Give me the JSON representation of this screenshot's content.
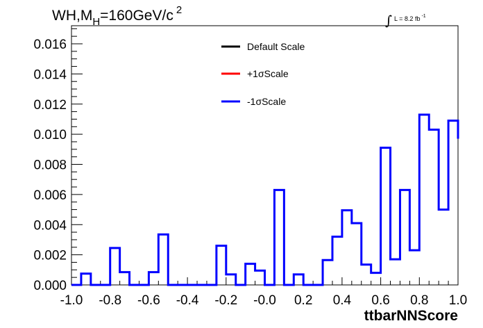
{
  "chart_data": {
    "type": "line",
    "title_parts": {
      "main": "WH,M",
      "sub": "H",
      "rest": "=160GeV/c",
      "sup": "2"
    },
    "lumi": {
      "integral": "∫",
      "text": "L = 8.2 fb",
      "sup": "-1"
    },
    "xlabel": "ttbarNNScore",
    "xlim": [
      -1.0,
      1.0
    ],
    "ylim": [
      0.0,
      0.0172
    ],
    "x_ticks": [
      "-1.0",
      "-0.8",
      "-0.6",
      "-0.4",
      "-0.2",
      "-0.0",
      "0.2",
      "0.4",
      "0.6",
      "0.8",
      "1.0"
    ],
    "y_ticks": [
      "0.000",
      "0.002",
      "0.004",
      "0.006",
      "0.008",
      "0.010",
      "0.012",
      "0.014",
      "0.016"
    ],
    "bin_edges": [
      -1.0,
      0.05
    ],
    "legend": [
      {
        "name": "Default Scale",
        "color": "#000000"
      },
      {
        "name": "+1σScale",
        "color": "#ff0000"
      },
      {
        "name": "-1σScale",
        "color": "#0000ff"
      }
    ],
    "series": [
      {
        "name": "-1σScale",
        "color": "#0000ff",
        "values": [
          0.0,
          0.00075,
          0.0,
          0.0,
          0.00245,
          0.00085,
          0.0,
          0.0,
          0.00085,
          0.00335,
          0.0,
          0.0,
          0.0,
          0.0,
          0.0,
          0.0026,
          0.0007,
          0.0,
          0.0014,
          0.00095,
          0.0,
          0.0063,
          0.0,
          0.0007,
          0.0,
          0.0,
          0.00165,
          0.0032,
          0.00495,
          0.0041,
          0.00135,
          0.0008,
          0.0091,
          0.0017,
          0.0063,
          0.0023,
          0.0113,
          0.0103,
          0.005,
          0.0109,
          0.0097
        ]
      }
    ]
  }
}
